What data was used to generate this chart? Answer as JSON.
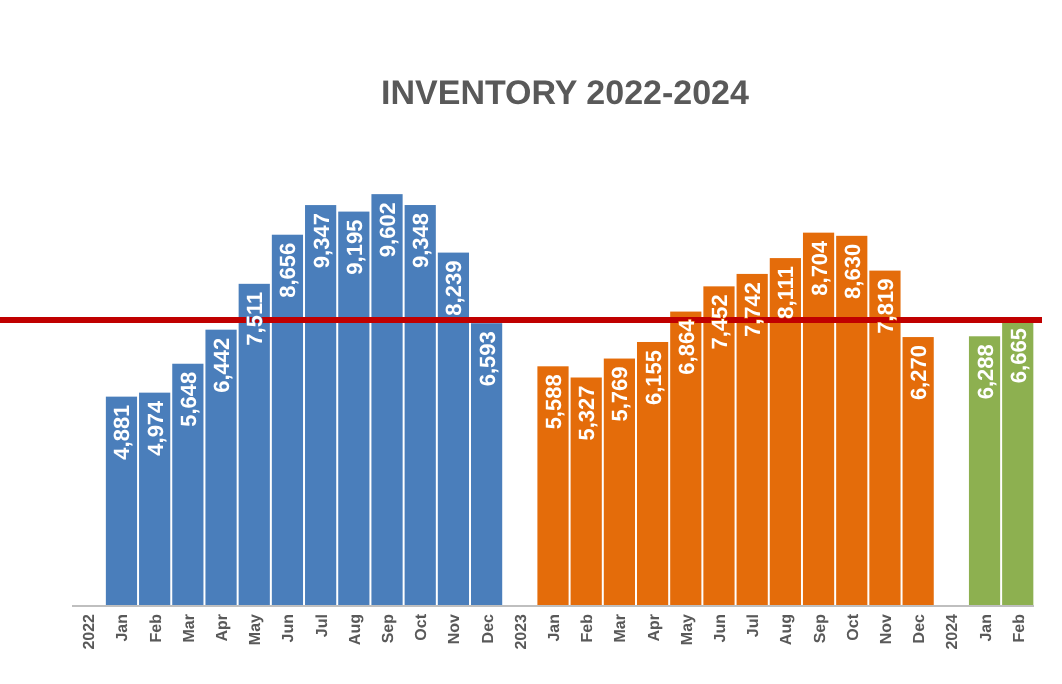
{
  "chart_data": {
    "type": "bar",
    "title": "INVENTORY 2022-2024",
    "categories": [
      "2022",
      "Jan",
      "Feb",
      "Mar",
      "Apr",
      "May",
      "Jun",
      "Jul",
      "Aug",
      "Sep",
      "Oct",
      "Nov",
      "Dec",
      "2023",
      "Jan",
      "Feb",
      "Mar",
      "Apr",
      "May",
      "Jun",
      "Jul",
      "Aug",
      "Sep",
      "Oct",
      "Nov",
      "Dec",
      "2024",
      "Jan",
      "Feb"
    ],
    "values": [
      null,
      4881,
      4974,
      5648,
      6442,
      7511,
      8656,
      9347,
      9195,
      9602,
      9348,
      8239,
      6593,
      null,
      5588,
      5327,
      5769,
      6155,
      6864,
      7452,
      7742,
      8111,
      8704,
      8630,
      7819,
      6270,
      null,
      6288,
      6665
    ],
    "value_labels": [
      null,
      "4,881",
      "4,974",
      "5,648",
      "6,442",
      "7,511",
      "8,656",
      "9,347",
      "9,195",
      "9,602",
      "9,348",
      "8,239",
      "6,593",
      null,
      "5,588",
      "5,327",
      "5,769",
      "6,155",
      "6,864",
      "7,452",
      "7,742",
      "8,111",
      "8,704",
      "8,630",
      "7,819",
      "6,270",
      null,
      "6,288",
      "6,665"
    ],
    "colors": [
      null,
      "#4a7ebb",
      "#4a7ebb",
      "#4a7ebb",
      "#4a7ebb",
      "#4a7ebb",
      "#4a7ebb",
      "#4a7ebb",
      "#4a7ebb",
      "#4a7ebb",
      "#4a7ebb",
      "#4a7ebb",
      "#4a7ebb",
      null,
      "#e46c0a",
      "#e46c0a",
      "#e46c0a",
      "#e46c0a",
      "#e46c0a",
      "#e46c0a",
      "#e46c0a",
      "#e46c0a",
      "#e46c0a",
      "#e46c0a",
      "#e46c0a",
      "#e46c0a",
      null,
      "#8db050",
      "#8db050"
    ],
    "ref_lines": [
      {
        "axis": "y",
        "value": 6665,
        "color": "#c00000"
      }
    ],
    "tick_labels": "x"
  }
}
